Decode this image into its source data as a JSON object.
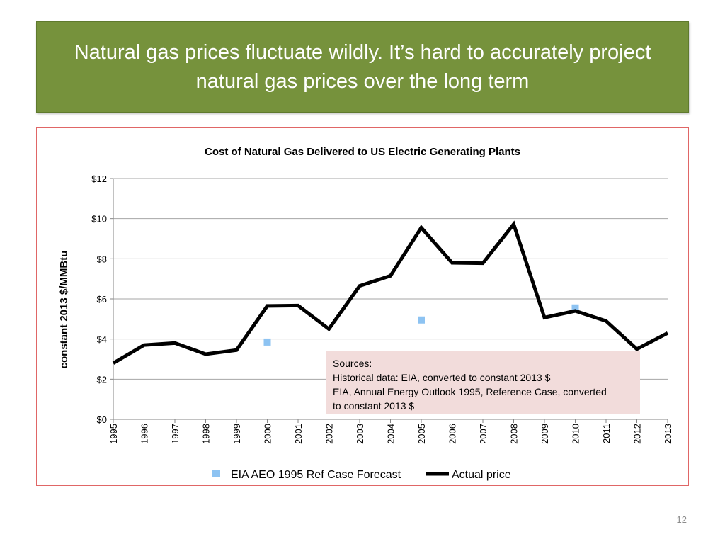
{
  "slide": {
    "title_lines": [
      "Natural gas prices fluctuate wildly.  It’s hard to accurately project",
      "natural gas prices over the long term"
    ],
    "page_number": "12",
    "banner_color": "#76923c",
    "frame_color": "#e06666"
  },
  "sources": {
    "lines": [
      "Sources:",
      "Historical data: EIA, converted to constant 2013 $",
      "EIA, Annual Energy Outlook 1995, Reference Case, converted",
      "to constant 2013 $"
    ],
    "background": "#f2dcdb"
  },
  "chart_data": {
    "type": "line",
    "title": "Cost of Natural Gas Delivered to US Electric Generating Plants",
    "xlabel": "",
    "ylabel": "constant 2013 $/MMBtu",
    "categories": [
      "1995",
      "1996",
      "1997",
      "1998",
      "1999",
      "2000",
      "2001",
      "2002",
      "2003",
      "2004",
      "2005",
      "2006",
      "2007",
      "2008",
      "2009",
      "2010",
      "2011",
      "2012",
      "2013"
    ],
    "ylim": [
      0,
      12
    ],
    "yticks": [
      0,
      2,
      4,
      6,
      8,
      10,
      12
    ],
    "ytick_labels": [
      "$0",
      "$2",
      "$4",
      "$6",
      "$8",
      "$10",
      "$12"
    ],
    "grid": true,
    "legend_position": "bottom",
    "series": [
      {
        "name": "EIA AEO 1995 Ref Case Forecast",
        "kind": "marker",
        "color": "#8dc3f2",
        "points": [
          {
            "x": "2000",
            "y": 3.85
          },
          {
            "x": "2005",
            "y": 4.95
          },
          {
            "x": "2010",
            "y": 5.55
          }
        ]
      },
      {
        "name": "Actual price",
        "kind": "line",
        "color": "#000000",
        "values": [
          2.8,
          3.7,
          3.8,
          3.25,
          3.45,
          5.65,
          5.67,
          4.5,
          6.65,
          7.15,
          9.55,
          7.8,
          7.78,
          9.72,
          5.07,
          5.4,
          4.9,
          3.5,
          4.3
        ]
      }
    ]
  }
}
